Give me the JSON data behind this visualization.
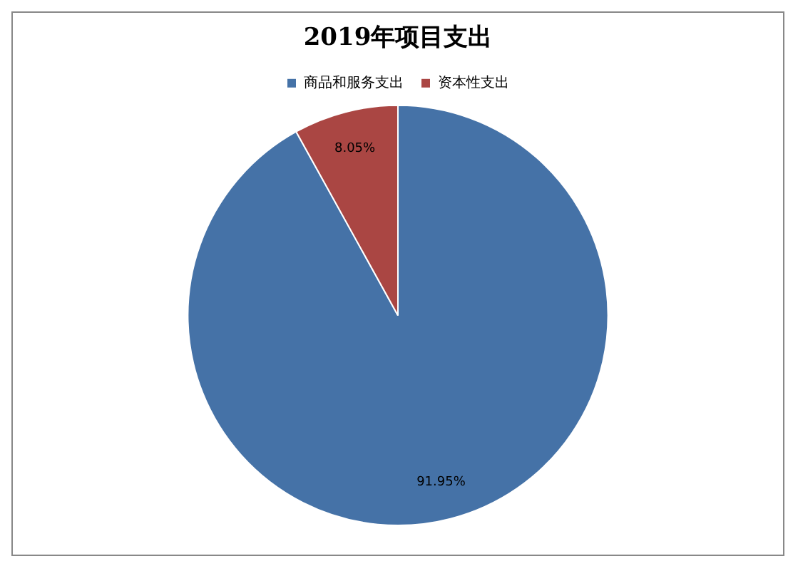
{
  "chart_data": {
    "type": "pie",
    "title": "2019年项目支出",
    "categories": [
      "商品和服务支出",
      "资本性支出"
    ],
    "values": [
      91.95,
      8.05
    ],
    "colors": [
      "#4572a7",
      "#aa4643"
    ],
    "value_labels": [
      "91.95%",
      "8.05%"
    ],
    "legend": "top"
  }
}
